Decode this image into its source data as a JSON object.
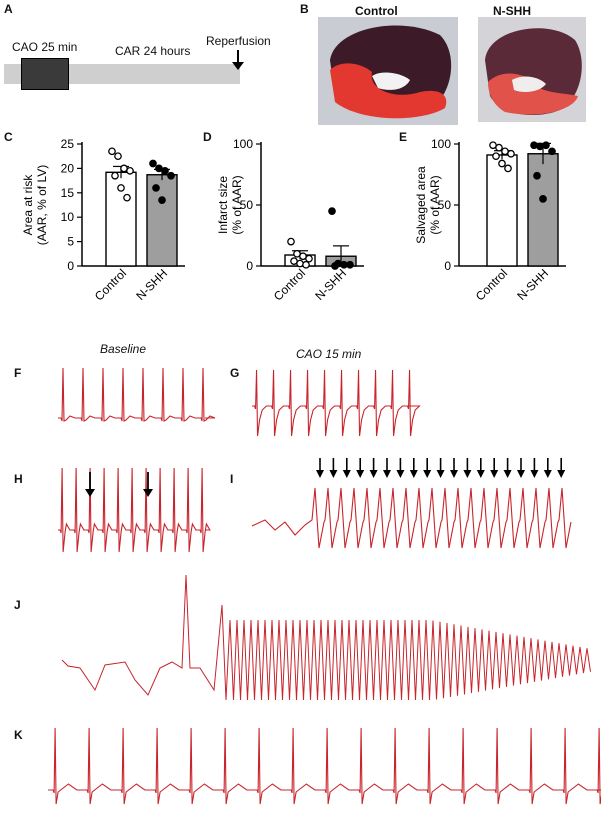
{
  "panels": {
    "A": "A",
    "B": "B",
    "C": "C",
    "D": "D",
    "E": "E",
    "F": "F",
    "G": "G",
    "H": "H",
    "I": "I",
    "J": "J",
    "K": "K"
  },
  "timeline": {
    "cao_label": "CAO 25 min",
    "car_label": "CAR 24 hours",
    "reperfusion_label": "Reperfusion"
  },
  "photos": {
    "control_title": "Control",
    "nshh_title": "N-SHH"
  },
  "ecg": {
    "baseline_label": "Baseline",
    "cao15_label": "CAO 15 min"
  },
  "colors": {
    "trace": "#c8242b",
    "bar_control": "#ffffff",
    "bar_nshh": "#9e9e9e",
    "timeline_bar": "#cfcfcf",
    "cao_box": "#3a3a3a"
  },
  "chart_data": [
    {
      "id": "C",
      "type": "bar",
      "ylabel_line1": "Area at risk",
      "ylabel_line2": "(AAR, % of LV)",
      "ylim": [
        0,
        25
      ],
      "yticks": [
        0,
        5,
        10,
        15,
        20,
        25
      ],
      "categories": [
        "Control",
        "N-SHH"
      ],
      "values": [
        19.2,
        18.7
      ],
      "errors": [
        1.2,
        1.1
      ],
      "points": [
        [
          23.5,
          22.5,
          20,
          19.5,
          18.5,
          16,
          14
        ],
        [
          21,
          20,
          19.5,
          18.5,
          16,
          13.5
        ]
      ]
    },
    {
      "id": "D",
      "type": "bar",
      "ylabel_line1": "Infarct size",
      "ylabel_line2": "(% of AAR)",
      "ylim": [
        0,
        100
      ],
      "yticks": [
        0,
        50,
        100
      ],
      "categories": [
        "Control",
        "N-SHH"
      ],
      "values": [
        9,
        8
      ],
      "errors": [
        3.5,
        8.5
      ],
      "points": [
        [
          20,
          10,
          8,
          6,
          4,
          2,
          1
        ],
        [
          45,
          2,
          1,
          1,
          0
        ]
      ]
    },
    {
      "id": "E",
      "type": "bar",
      "ylabel_line1": "Salvaged area",
      "ylabel_line2": "(% of AAR)",
      "ylim": [
        0,
        100
      ],
      "yticks": [
        0,
        50,
        100
      ],
      "categories": [
        "Control",
        "N-SHH"
      ],
      "values": [
        91,
        92
      ],
      "errors": [
        3.5,
        8.5
      ],
      "points": [
        [
          99,
          97,
          94,
          92,
          90,
          84,
          80
        ],
        [
          99,
          98,
          99,
          94,
          74,
          55
        ]
      ]
    }
  ]
}
